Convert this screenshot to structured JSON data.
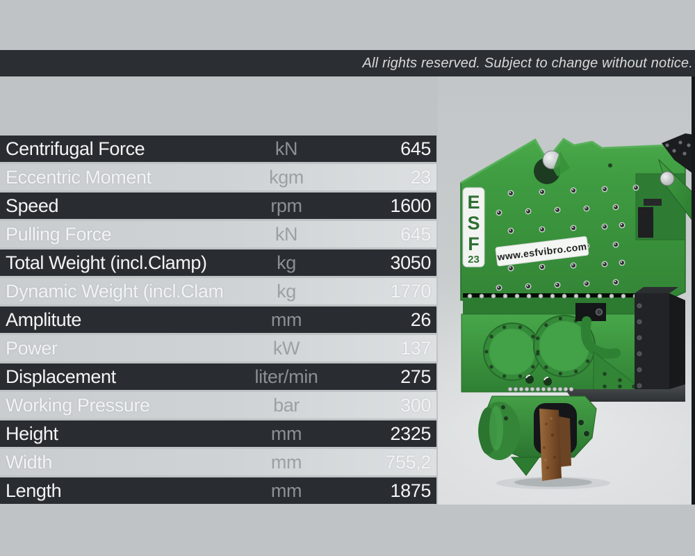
{
  "page": {
    "background_color": "#bfc3c5"
  },
  "notice_bar": {
    "text": "All rights reserved. Subject to change without notice.",
    "background_color": "#2b2e32",
    "text_color": "#d8dadb"
  },
  "spec_table": {
    "dark_row_color": "#292c30",
    "light_row_color": "#ced2d4",
    "rows": [
      {
        "label": "Centrifugal Force",
        "unit": "kN",
        "value": "645"
      },
      {
        "label": "Eccentric Moment",
        "unit": "kgm",
        "value": "23"
      },
      {
        "label": "Speed",
        "unit": "rpm",
        "value": "1600"
      },
      {
        "label": "Pulling Force",
        "unit": "kN",
        "value": "645"
      },
      {
        "label": "Total Weight (incl.Clamp)",
        "unit": "kg",
        "value": "3050"
      },
      {
        "label": "Dynamic Weight (incl.Clamp)",
        "unit": "kg",
        "value": "1770"
      },
      {
        "label": "Amplitute",
        "unit": "mm",
        "value": "26"
      },
      {
        "label": "Power",
        "unit": "kW",
        "value": "137"
      },
      {
        "label": "Displacement",
        "unit": "liter/min",
        "value": "275"
      },
      {
        "label": "Working Pressure",
        "unit": "bar",
        "value": "300"
      },
      {
        "label": "Height",
        "unit": "mm",
        "value": "2325"
      },
      {
        "label": "Width",
        "unit": "mm",
        "value": "755,2"
      },
      {
        "label": "Length",
        "unit": "mm",
        "value": "1875"
      }
    ]
  },
  "product": {
    "model_label_letters": [
      "E",
      "S",
      "F"
    ],
    "model_label_number": "23",
    "website": "www.esfvibro.com",
    "machine_color": "#3f9c41",
    "label_text_color": "#2e7031",
    "pile_rust_color": "#8a5a33"
  }
}
